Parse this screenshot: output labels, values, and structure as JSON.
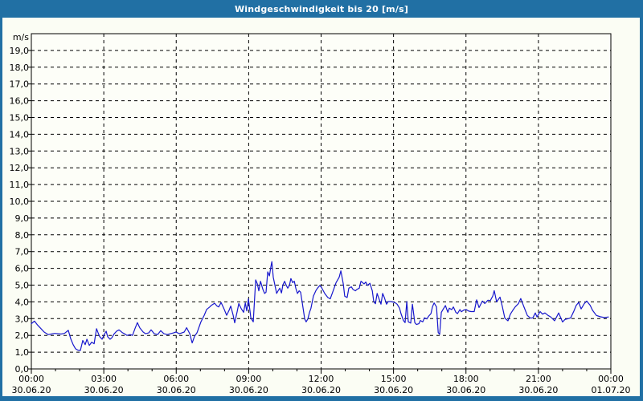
{
  "window": {
    "title": "Windgeschwindigkeit bis 20 [m/s]",
    "frame_color": "#2170a4",
    "title_text_color": "#ffffff",
    "content_bg": "#fbfdf4"
  },
  "chart_data": {
    "type": "line",
    "title": "Windgeschwindigkeit bis 20 [m/s]",
    "unit_label": "m/s",
    "ylabel": "m/s",
    "xlabel": "",
    "ylim": [
      0,
      20
    ],
    "xlim_hours": [
      0,
      24
    ],
    "grid": "dashed",
    "legend": "none",
    "plot_bg": "#fdfef8",
    "line_color": "#1717cd",
    "y_ticks": [
      {
        "value": 0,
        "label": "0,0"
      },
      {
        "value": 1,
        "label": "1,0"
      },
      {
        "value": 2,
        "label": "2,0"
      },
      {
        "value": 3,
        "label": "3,0"
      },
      {
        "value": 4,
        "label": "4,0"
      },
      {
        "value": 5,
        "label": "5,0"
      },
      {
        "value": 6,
        "label": "6,0"
      },
      {
        "value": 7,
        "label": "7,0"
      },
      {
        "value": 8,
        "label": "8,0"
      },
      {
        "value": 9,
        "label": "9,0"
      },
      {
        "value": 10,
        "label": "10,0"
      },
      {
        "value": 11,
        "label": "11,0"
      },
      {
        "value": 12,
        "label": "12,0"
      },
      {
        "value": 13,
        "label": "13,0"
      },
      {
        "value": 14,
        "label": "14,0"
      },
      {
        "value": 15,
        "label": "15,0"
      },
      {
        "value": 16,
        "label": "16,0"
      },
      {
        "value": 17,
        "label": "17,0"
      },
      {
        "value": 18,
        "label": "18,0"
      },
      {
        "value": 19,
        "label": "19,0"
      }
    ],
    "x_ticks": [
      {
        "hour": 0,
        "time": "00:00",
        "date": "30.06.20"
      },
      {
        "hour": 3,
        "time": "03:00",
        "date": "30.06.20"
      },
      {
        "hour": 6,
        "time": "06:00",
        "date": "30.06.20"
      },
      {
        "hour": 9,
        "time": "09:00",
        "date": "30.06.20"
      },
      {
        "hour": 12,
        "time": "12:00",
        "date": "30.06.20"
      },
      {
        "hour": 15,
        "time": "15:00",
        "date": "30.06.20"
      },
      {
        "hour": 18,
        "time": "18:00",
        "date": "30.06.20"
      },
      {
        "hour": 21,
        "time": "21:00",
        "date": "30.06.20"
      },
      {
        "hour": 24,
        "time": "00:00",
        "date": "01.07.20"
      }
    ],
    "series": [
      {
        "name": "Windgeschwindigkeit [m/s]",
        "points": [
          [
            0,
            2.7
          ],
          [
            0.13,
            2.85
          ],
          [
            0.27,
            2.6
          ],
          [
            0.4,
            2.4
          ],
          [
            0.53,
            2.2
          ],
          [
            0.7,
            2.05
          ],
          [
            0.83,
            2.08
          ],
          [
            0.97,
            2.12
          ],
          [
            1.1,
            2.1
          ],
          [
            1.23,
            2.08
          ],
          [
            1.37,
            2.12
          ],
          [
            1.53,
            2.3
          ],
          [
            1.63,
            1.8
          ],
          [
            1.73,
            1.45
          ],
          [
            1.83,
            1.2
          ],
          [
            1.93,
            1.12
          ],
          [
            2.03,
            1.1
          ],
          [
            2.13,
            1.7
          ],
          [
            2.23,
            1.45
          ],
          [
            2.3,
            1.77
          ],
          [
            2.4,
            1.4
          ],
          [
            2.5,
            1.6
          ],
          [
            2.6,
            1.5
          ],
          [
            2.7,
            2.4
          ],
          [
            2.76,
            2.17
          ],
          [
            2.83,
            1.93
          ],
          [
            2.93,
            1.77
          ],
          [
            3,
            2.0
          ],
          [
            3.1,
            2.25
          ],
          [
            3.16,
            1.93
          ],
          [
            3.26,
            1.77
          ],
          [
            3.33,
            1.85
          ],
          [
            3.43,
            2.09
          ],
          [
            3.53,
            2.25
          ],
          [
            3.63,
            2.33
          ],
          [
            3.76,
            2.17
          ],
          [
            3.86,
            2.09
          ],
          [
            3.96,
            2.0
          ],
          [
            4.09,
            2.05
          ],
          [
            4.19,
            2.0
          ],
          [
            4.29,
            2.4
          ],
          [
            4.39,
            2.76
          ],
          [
            4.49,
            2.45
          ],
          [
            4.63,
            2.2
          ],
          [
            4.73,
            2.1
          ],
          [
            4.86,
            2.15
          ],
          [
            4.96,
            2.33
          ],
          [
            5.09,
            2.1
          ],
          [
            5.23,
            2.05
          ],
          [
            5.36,
            2.28
          ],
          [
            5.49,
            2.1
          ],
          [
            5.63,
            2.05
          ],
          [
            5.76,
            2.1
          ],
          [
            5.89,
            2.15
          ],
          [
            5.99,
            2.2
          ],
          [
            6.13,
            2.1
          ],
          [
            6.23,
            2.15
          ],
          [
            6.33,
            2.2
          ],
          [
            6.43,
            2.46
          ],
          [
            6.56,
            2.1
          ],
          [
            6.66,
            1.55
          ],
          [
            6.76,
            1.95
          ],
          [
            6.86,
            2.16
          ],
          [
            7.02,
            2.8
          ],
          [
            7.16,
            3.2
          ],
          [
            7.26,
            3.55
          ],
          [
            7.39,
            3.7
          ],
          [
            7.46,
            3.8
          ],
          [
            7.59,
            3.92
          ],
          [
            7.69,
            3.75
          ],
          [
            7.76,
            3.7
          ],
          [
            7.86,
            3.96
          ],
          [
            7.99,
            3.55
          ],
          [
            8.09,
            3.2
          ],
          [
            8.19,
            3.5
          ],
          [
            8.26,
            3.75
          ],
          [
            8.36,
            3.2
          ],
          [
            8.42,
            2.75
          ],
          [
            8.52,
            3.4
          ],
          [
            8.59,
            3.9
          ],
          [
            8.69,
            3.6
          ],
          [
            8.79,
            3.38
          ],
          [
            8.86,
            3.94
          ],
          [
            8.92,
            3.46
          ],
          [
            8.99,
            4.18
          ],
          [
            9.09,
            3.05
          ],
          [
            9.19,
            2.81
          ],
          [
            9.29,
            5.31
          ],
          [
            9.36,
            5.07
          ],
          [
            9.42,
            4.66
          ],
          [
            9.49,
            5.23
          ],
          [
            9.59,
            4.74
          ],
          [
            9.66,
            4.5
          ],
          [
            9.72,
            4.58
          ],
          [
            9.79,
            5.79
          ],
          [
            9.86,
            5.55
          ],
          [
            9.92,
            6.08
          ],
          [
            9.96,
            6.4
          ],
          [
            10.02,
            5.47
          ],
          [
            10.09,
            4.98
          ],
          [
            10.16,
            4.5
          ],
          [
            10.22,
            4.66
          ],
          [
            10.29,
            4.82
          ],
          [
            10.36,
            4.53
          ],
          [
            10.42,
            5.02
          ],
          [
            10.49,
            5.23
          ],
          [
            10.56,
            4.98
          ],
          [
            10.62,
            4.82
          ],
          [
            10.69,
            4.98
          ],
          [
            10.75,
            5.39
          ],
          [
            10.82,
            5.15
          ],
          [
            10.89,
            5.23
          ],
          [
            10.95,
            4.82
          ],
          [
            11.02,
            4.5
          ],
          [
            11.09,
            4.66
          ],
          [
            11.15,
            4.58
          ],
          [
            11.22,
            3.94
          ],
          [
            11.32,
            2.98
          ],
          [
            11.38,
            2.81
          ],
          [
            11.45,
            2.98
          ],
          [
            11.52,
            3.38
          ],
          [
            11.58,
            3.62
          ],
          [
            11.68,
            4.34
          ],
          [
            11.78,
            4.66
          ],
          [
            11.85,
            4.82
          ],
          [
            11.95,
            4.98
          ],
          [
            12.02,
            4.85
          ],
          [
            12.15,
            4.5
          ],
          [
            12.28,
            4.26
          ],
          [
            12.38,
            4.18
          ],
          [
            12.52,
            4.74
          ],
          [
            12.62,
            5.15
          ],
          [
            12.75,
            5.47
          ],
          [
            12.82,
            5.85
          ],
          [
            12.92,
            5.07
          ],
          [
            12.98,
            4.34
          ],
          [
            13.08,
            4.26
          ],
          [
            13.15,
            4.82
          ],
          [
            13.25,
            4.9
          ],
          [
            13.32,
            4.74
          ],
          [
            13.42,
            4.66
          ],
          [
            13.48,
            4.74
          ],
          [
            13.58,
            4.82
          ],
          [
            13.65,
            5.23
          ],
          [
            13.72,
            5.15
          ],
          [
            13.78,
            5.07
          ],
          [
            13.85,
            5.18
          ],
          [
            13.92,
            4.98
          ],
          [
            14.02,
            5.11
          ],
          [
            14.12,
            4.66
          ],
          [
            14.18,
            4.02
          ],
          [
            14.25,
            3.89
          ],
          [
            14.32,
            4.5
          ],
          [
            14.42,
            4.1
          ],
          [
            14.48,
            3.86
          ],
          [
            14.55,
            4.5
          ],
          [
            14.62,
            4.26
          ],
          [
            14.71,
            3.86
          ],
          [
            14.78,
            4.02
          ],
          [
            14.88,
            4.02
          ],
          [
            14.98,
            3.99
          ],
          [
            15.08,
            3.94
          ],
          [
            15.15,
            3.86
          ],
          [
            15.25,
            3.62
          ],
          [
            15.31,
            3.3
          ],
          [
            15.41,
            2.89
          ],
          [
            15.48,
            2.76
          ],
          [
            15.55,
            4.02
          ],
          [
            15.61,
            2.81
          ],
          [
            15.71,
            2.73
          ],
          [
            15.78,
            3.86
          ],
          [
            15.88,
            2.76
          ],
          [
            15.95,
            2.65
          ],
          [
            16.05,
            2.7
          ],
          [
            16.11,
            2.89
          ],
          [
            16.21,
            2.81
          ],
          [
            16.28,
            3.05
          ],
          [
            16.38,
            2.98
          ],
          [
            16.45,
            3.14
          ],
          [
            16.55,
            3.3
          ],
          [
            16.61,
            3.7
          ],
          [
            16.68,
            3.94
          ],
          [
            16.78,
            3.7
          ],
          [
            16.85,
            2.17
          ],
          [
            16.91,
            2.06
          ],
          [
            16.98,
            3.38
          ],
          [
            17.08,
            3.62
          ],
          [
            17.15,
            3.78
          ],
          [
            17.25,
            3.38
          ],
          [
            17.31,
            3.62
          ],
          [
            17.41,
            3.54
          ],
          [
            17.48,
            3.7
          ],
          [
            17.58,
            3.38
          ],
          [
            17.65,
            3.3
          ],
          [
            17.75,
            3.54
          ],
          [
            17.81,
            3.41
          ],
          [
            17.91,
            3.51
          ],
          [
            18.01,
            3.54
          ],
          [
            18.11,
            3.45
          ],
          [
            18.21,
            3.42
          ],
          [
            18.34,
            3.42
          ],
          [
            18.44,
            4.12
          ],
          [
            18.54,
            3.66
          ],
          [
            18.68,
            4.05
          ],
          [
            18.78,
            3.9
          ],
          [
            18.91,
            4.1
          ],
          [
            19.01,
            4.08
          ],
          [
            19.11,
            4.35
          ],
          [
            19.17,
            4.67
          ],
          [
            19.27,
            4.0
          ],
          [
            19.41,
            4.28
          ],
          [
            19.51,
            3.7
          ],
          [
            19.61,
            3.03
          ],
          [
            19.74,
            2.87
          ],
          [
            19.84,
            3.27
          ],
          [
            19.94,
            3.5
          ],
          [
            20.04,
            3.7
          ],
          [
            20.17,
            3.89
          ],
          [
            20.27,
            4.2
          ],
          [
            20.41,
            3.66
          ],
          [
            20.54,
            3.19
          ],
          [
            20.67,
            3.03
          ],
          [
            20.77,
            3.05
          ],
          [
            20.87,
            3.34
          ],
          [
            20.94,
            3.1
          ],
          [
            21.07,
            3.42
          ],
          [
            21.17,
            3.27
          ],
          [
            21.27,
            3.34
          ],
          [
            21.4,
            3.19
          ],
          [
            21.5,
            3.11
          ],
          [
            21.67,
            2.87
          ],
          [
            21.84,
            3.34
          ],
          [
            22,
            2.8
          ],
          [
            22.1,
            2.95
          ],
          [
            22.24,
            3.0
          ],
          [
            22.34,
            3.05
          ],
          [
            22.47,
            3.45
          ],
          [
            22.57,
            3.8
          ],
          [
            22.67,
            3.97
          ],
          [
            22.77,
            3.58
          ],
          [
            22.9,
            3.9
          ],
          [
            23,
            4.05
          ],
          [
            23.14,
            3.8
          ],
          [
            23.24,
            3.5
          ],
          [
            23.4,
            3.19
          ],
          [
            23.57,
            3.11
          ],
          [
            23.74,
            3.06
          ],
          [
            23.9,
            3.1
          ]
        ]
      }
    ]
  }
}
